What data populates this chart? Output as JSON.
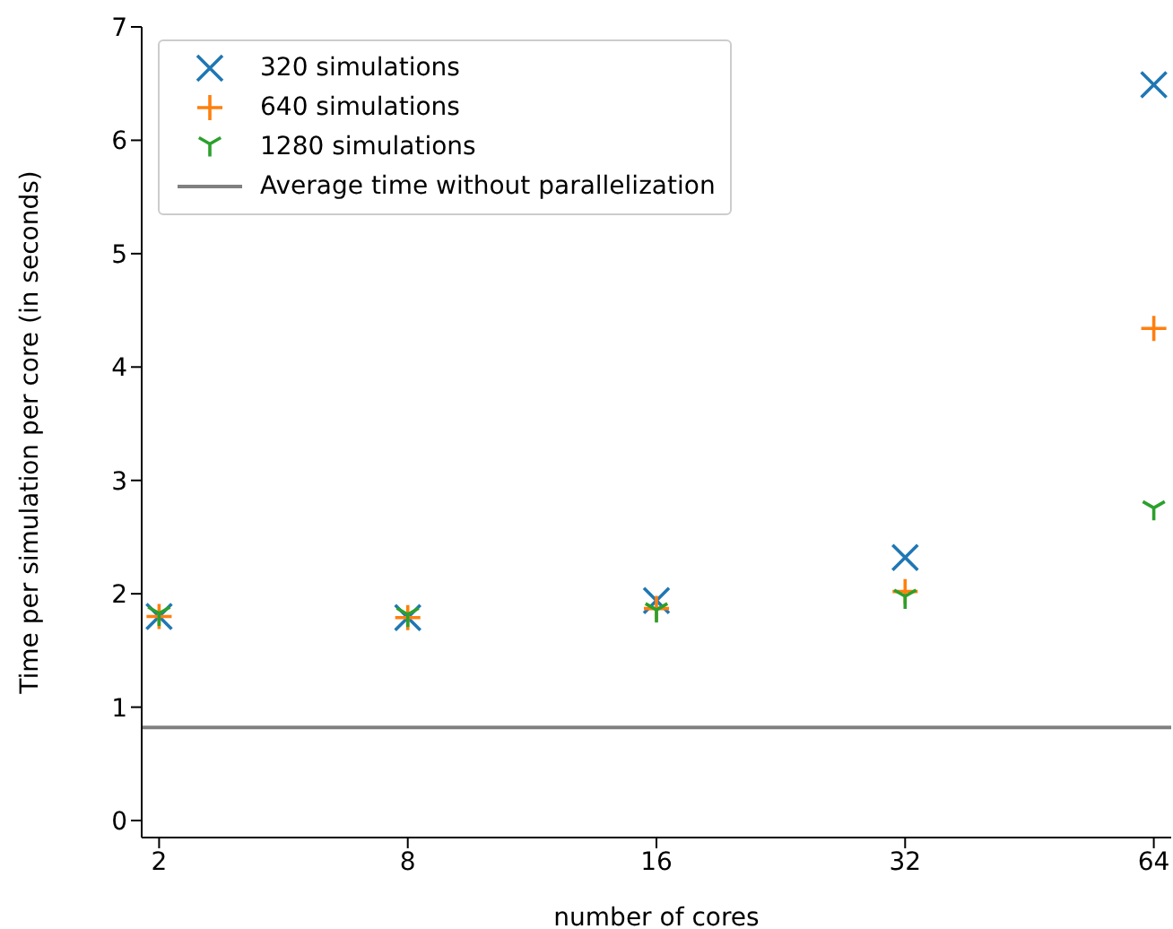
{
  "chart_data": {
    "type": "scatter",
    "xlabel": "number of cores",
    "ylabel": "Time per simulation per core (in seconds)",
    "categories": [
      "2",
      "8",
      "16",
      "32",
      "64"
    ],
    "series": [
      {
        "name": "320 simulations",
        "color": "#1f77b4",
        "values": [
          1.8,
          1.79,
          1.94,
          2.32,
          6.49
        ]
      },
      {
        "name": "640 simulations",
        "color": "#ff7f0e",
        "values": [
          1.8,
          1.79,
          1.87,
          2.02,
          4.34
        ]
      },
      {
        "name": "1280 simulations",
        "color": "#2ca02c",
        "values": [
          1.8,
          1.79,
          1.83,
          1.95,
          2.73
        ]
      }
    ],
    "ref_lines": [
      {
        "axis": "y",
        "value": 0.82,
        "label": "Average time without parallelization",
        "color": "#808080"
      }
    ],
    "ylim": [
      -0.15,
      7
    ],
    "yticks": [
      0,
      1,
      2,
      3,
      4,
      5,
      6,
      7
    ],
    "legend": "top left",
    "grid": false
  }
}
